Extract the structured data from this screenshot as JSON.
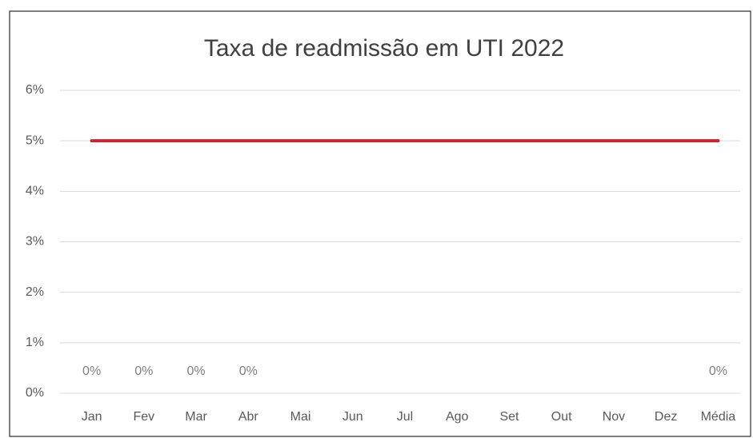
{
  "chart_data": {
    "type": "line",
    "title": "Taxa de readmissão em UTI 2022",
    "categories": [
      "Jan",
      "Fev",
      "Mar",
      "Abr",
      "Mai",
      "Jun",
      "Jul",
      "Ago",
      "Set",
      "Out",
      "Nov",
      "Dez",
      "Média"
    ],
    "series": [
      {
        "color": "#c0282f",
        "values": [
          5,
          5,
          5,
          5,
          5,
          5,
          5,
          5,
          5,
          5,
          5,
          5,
          5
        ]
      },
      {
        "color": "#7f7f7f",
        "values": [
          0,
          0,
          0,
          0,
          null,
          null,
          null,
          null,
          null,
          null,
          null,
          null,
          0
        ],
        "value_labels": [
          "0%",
          "0%",
          "0%",
          "0%",
          null,
          null,
          null,
          null,
          null,
          null,
          null,
          null,
          "0%"
        ]
      }
    ],
    "ylim": [
      0,
      6
    ],
    "yticks": [
      {
        "value": 0,
        "label": "0%"
      },
      {
        "value": 1,
        "label": "1%"
      },
      {
        "value": 2,
        "label": "2%"
      },
      {
        "value": 3,
        "label": "3%"
      },
      {
        "value": 4,
        "label": "4%"
      },
      {
        "value": 5,
        "label": "5%"
      },
      {
        "value": 6,
        "label": "6%"
      }
    ],
    "grid": true
  }
}
